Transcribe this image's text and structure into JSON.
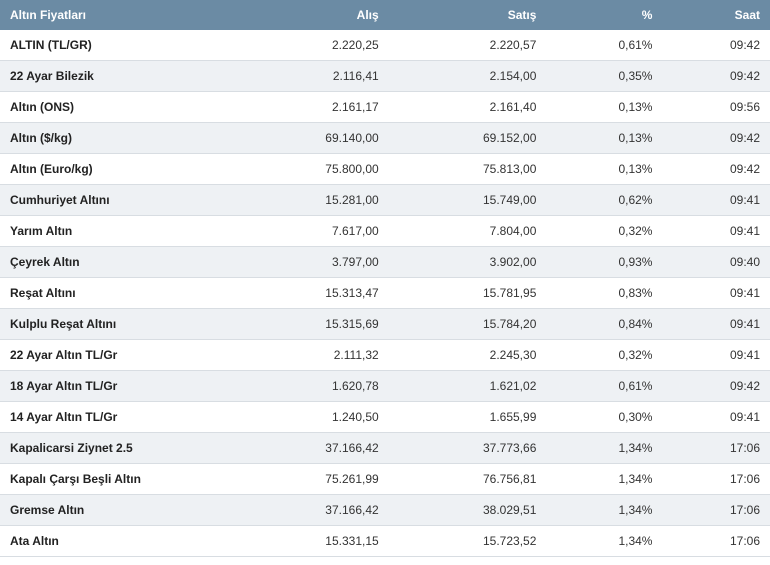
{
  "table": {
    "header_bg": "#6b8ba4",
    "header_color": "#ffffff",
    "row_odd_bg": "#ffffff",
    "row_even_bg": "#eef1f4",
    "border_color": "#d8dde2",
    "font_size": 12,
    "columns": [
      "Altın Fiyatları",
      "Alış",
      "Satış",
      "%",
      "Saat"
    ],
    "rows": [
      {
        "name": "ALTIN (TL/GR)",
        "alis": "2.220,25",
        "satis": "2.220,57",
        "pct": "0,61%",
        "saat": "09:42"
      },
      {
        "name": "22 Ayar Bilezik",
        "alis": "2.116,41",
        "satis": "2.154,00",
        "pct": "0,35%",
        "saat": "09:42"
      },
      {
        "name": "Altın (ONS)",
        "alis": "2.161,17",
        "satis": "2.161,40",
        "pct": "0,13%",
        "saat": "09:56"
      },
      {
        "name": "Altın ($/kg)",
        "alis": "69.140,00",
        "satis": "69.152,00",
        "pct": "0,13%",
        "saat": "09:42"
      },
      {
        "name": "Altın (Euro/kg)",
        "alis": "75.800,00",
        "satis": "75.813,00",
        "pct": "0,13%",
        "saat": "09:42"
      },
      {
        "name": "Cumhuriyet Altını",
        "alis": "15.281,00",
        "satis": "15.749,00",
        "pct": "0,62%",
        "saat": "09:41"
      },
      {
        "name": "Yarım Altın",
        "alis": "7.617,00",
        "satis": "7.804,00",
        "pct": "0,32%",
        "saat": "09:41"
      },
      {
        "name": "Çeyrek Altın",
        "alis": "3.797,00",
        "satis": "3.902,00",
        "pct": "0,93%",
        "saat": "09:40"
      },
      {
        "name": "Reşat Altını",
        "alis": "15.313,47",
        "satis": "15.781,95",
        "pct": "0,83%",
        "saat": "09:41"
      },
      {
        "name": "Kulplu Reşat Altını",
        "alis": "15.315,69",
        "satis": "15.784,20",
        "pct": "0,84%",
        "saat": "09:41"
      },
      {
        "name": "22 Ayar Altın TL/Gr",
        "alis": "2.111,32",
        "satis": "2.245,30",
        "pct": "0,32%",
        "saat": "09:41"
      },
      {
        "name": "18 Ayar Altın TL/Gr",
        "alis": "1.620,78",
        "satis": "1.621,02",
        "pct": "0,61%",
        "saat": "09:42"
      },
      {
        "name": "14 Ayar Altın TL/Gr",
        "alis": "1.240,50",
        "satis": "1.655,99",
        "pct": "0,30%",
        "saat": "09:41"
      },
      {
        "name": "Kapalicarsi Ziynet 2.5",
        "alis": "37.166,42",
        "satis": "37.773,66",
        "pct": "1,34%",
        "saat": "17:06"
      },
      {
        "name": "Kapalı Çarşı Beşli Altın",
        "alis": "75.261,99",
        "satis": "76.756,81",
        "pct": "1,34%",
        "saat": "17:06"
      },
      {
        "name": "Gremse Altın",
        "alis": "37.166,42",
        "satis": "38.029,51",
        "pct": "1,34%",
        "saat": "17:06"
      },
      {
        "name": "Ata Altın",
        "alis": "15.331,15",
        "satis": "15.723,52",
        "pct": "1,34%",
        "saat": "17:06"
      }
    ]
  }
}
